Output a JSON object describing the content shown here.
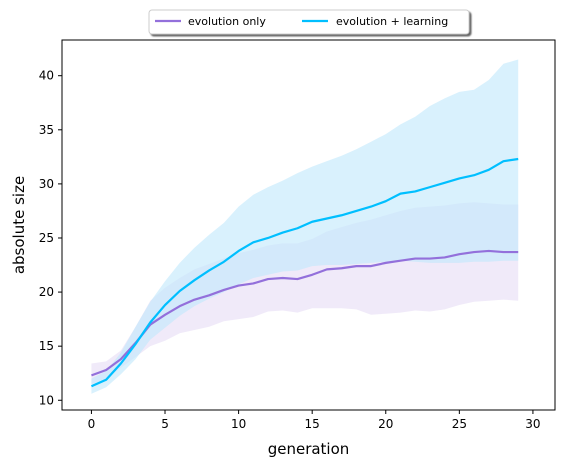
{
  "chart_data": {
    "type": "line",
    "xlabel": "generation",
    "ylabel": "absolute size",
    "xlim": [
      -2,
      31.5
    ],
    "ylim": [
      9.1,
      43.3
    ],
    "xticks": [
      0,
      5,
      10,
      15,
      20,
      25,
      30
    ],
    "yticks": [
      10,
      15,
      20,
      25,
      30,
      35,
      40
    ],
    "grid": false,
    "legend_placement": "top-center",
    "x": [
      0,
      1,
      2,
      3,
      4,
      5,
      6,
      7,
      8,
      9,
      10,
      11,
      12,
      13,
      14,
      15,
      16,
      17,
      18,
      19,
      20,
      21,
      22,
      23,
      24,
      25,
      26,
      27,
      28,
      29
    ],
    "series": [
      {
        "name": "evolution only",
        "color": "#9370db",
        "band_color": "#e6dcf5",
        "values": [
          12.3,
          12.8,
          13.8,
          15.3,
          17.0,
          17.9,
          18.7,
          19.3,
          19.7,
          20.2,
          20.6,
          20.8,
          21.2,
          21.3,
          21.2,
          21.6,
          22.1,
          22.2,
          22.4,
          22.4,
          22.7,
          22.9,
          23.1,
          23.1,
          23.2,
          23.5,
          23.7,
          23.8,
          23.7,
          23.7
        ],
        "lower": [
          11.5,
          12.0,
          13.0,
          14.0,
          15.0,
          15.5,
          16.2,
          16.5,
          16.8,
          17.3,
          17.5,
          17.7,
          18.2,
          18.3,
          18.1,
          18.5,
          18.5,
          18.5,
          18.4,
          17.9,
          18.0,
          18.1,
          18.3,
          18.2,
          18.4,
          18.8,
          19.1,
          19.2,
          19.3,
          19.2
        ],
        "upper": [
          13.4,
          13.6,
          14.6,
          16.8,
          19.2,
          20.4,
          21.3,
          22.1,
          22.6,
          23.1,
          23.6,
          23.9,
          24.3,
          24.5,
          24.5,
          24.9,
          25.6,
          26.0,
          26.4,
          26.7,
          27.1,
          27.5,
          27.8,
          27.9,
          28.0,
          28.2,
          28.3,
          28.2,
          28.1,
          28.1
        ]
      },
      {
        "name": "evolution + learning",
        "color": "#00bfff",
        "band_color": "#bfe8fc",
        "values": [
          11.3,
          11.9,
          13.4,
          15.2,
          17.2,
          18.8,
          20.1,
          21.1,
          22.0,
          22.8,
          23.8,
          24.6,
          25.0,
          25.5,
          25.9,
          26.5,
          26.8,
          27.1,
          27.5,
          27.9,
          28.4,
          29.1,
          29.3,
          29.7,
          30.1,
          30.5,
          30.8,
          31.3,
          32.1,
          32.3
        ],
        "lower": [
          10.6,
          11.2,
          12.4,
          13.8,
          15.6,
          16.7,
          17.8,
          18.7,
          19.4,
          20.0,
          20.7,
          21.3,
          21.6,
          21.9,
          22.0,
          22.4,
          22.5,
          22.5,
          22.6,
          22.7,
          22.8,
          22.9,
          22.8,
          22.7,
          22.7,
          22.7,
          22.8,
          22.8,
          22.9,
          22.9
        ],
        "upper": [
          12.0,
          12.7,
          14.4,
          16.8,
          19.1,
          21.0,
          22.7,
          24.1,
          25.3,
          26.4,
          27.9,
          29.0,
          29.7,
          30.3,
          31.0,
          31.6,
          32.1,
          32.6,
          33.2,
          33.9,
          34.6,
          35.5,
          36.2,
          37.2,
          37.9,
          38.5,
          38.7,
          39.6,
          41.1,
          41.5
        ]
      }
    ]
  }
}
